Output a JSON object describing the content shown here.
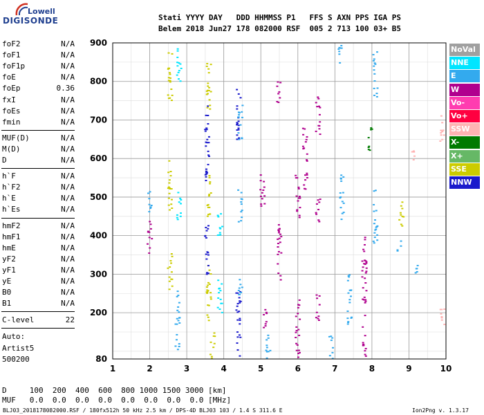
{
  "logo": {
    "top": "Lowell",
    "bottom": "DIGISONDE"
  },
  "header": {
    "line1": "Stati YYYY DAY   DDD HHMMSS P1   FFS S AXN PPS IGA PS",
    "line2": "Belem 2018 Jun27 178 082000 RSF  005 2 713 100 03+ B5"
  },
  "params_group1": [
    {
      "name": "foF2",
      "value": "N/A"
    },
    {
      "name": "foF1",
      "value": "N/A"
    },
    {
      "name": "foF1p",
      "value": "N/A"
    },
    {
      "name": "foE",
      "value": "N/A"
    },
    {
      "name": "foEp",
      "value": "0.36"
    },
    {
      "name": "fxI",
      "value": "N/A"
    },
    {
      "name": "foEs",
      "value": "N/A"
    },
    {
      "name": "fmin",
      "value": "N/A"
    }
  ],
  "params_group2": [
    {
      "name": "MUF(D)",
      "value": "N/A"
    },
    {
      "name": "M(D)",
      "value": "N/A"
    },
    {
      "name": "D",
      "value": "N/A"
    }
  ],
  "params_group3": [
    {
      "name": "h`F",
      "value": "N/A"
    },
    {
      "name": "h`F2",
      "value": "N/A"
    },
    {
      "name": "h`E",
      "value": "N/A"
    },
    {
      "name": "h`Es",
      "value": "N/A"
    }
  ],
  "params_group4": [
    {
      "name": "hmF2",
      "value": "N/A"
    },
    {
      "name": "hmF1",
      "value": "N/A"
    },
    {
      "name": "hmE",
      "value": "N/A"
    },
    {
      "name": "yF2",
      "value": "N/A"
    },
    {
      "name": "yF1",
      "value": "N/A"
    },
    {
      "name": "yE",
      "value": "N/A"
    },
    {
      "name": "B0",
      "value": "N/A"
    },
    {
      "name": "B1",
      "value": "N/A"
    }
  ],
  "clevel": {
    "name": "C-level",
    "value": "22"
  },
  "auto": {
    "line1": "Auto:",
    "line2": "Artist5",
    "line3": "500200"
  },
  "d_row": "D     100  200  400  600  800 1000 1500 3000 [km]",
  "muf_row": "MUF   0.0  0.0  0.0  0.0  0.0  0.0  0.0  0.0 [MHz]",
  "footer_left": "BLJ03_2018178082000.RSF / 180fx512h 50 kHz 2.5 km / DPS-4D BLJ03 103 / 1.4 S 311.6 E",
  "footer_right": "Ion2Png v. 1.3.17",
  "legend": [
    {
      "label": "NoVal",
      "color": "#a0a0a0"
    },
    {
      "label": "NNE",
      "color": "#00e5ff"
    },
    {
      "label": "E",
      "color": "#33aaee"
    },
    {
      "label": "W",
      "color": "#b0008e"
    },
    {
      "label": "Vo-",
      "color": "#ff3db0"
    },
    {
      "label": "Vo+",
      "color": "#ff0040"
    },
    {
      "label": "SSW",
      "color": "#ffb3b3"
    },
    {
      "label": "X-",
      "color": "#007a00"
    },
    {
      "label": "X+",
      "color": "#66b866"
    },
    {
      "label": "SSE",
      "color": "#cccc00"
    },
    {
      "label": "NNW",
      "color": "#1a1acc"
    }
  ],
  "chart_data": {
    "type": "scatter",
    "xlim": [
      1,
      10
    ],
    "ylim": [
      80,
      900
    ],
    "x_ticks": [
      "1",
      "2",
      "3",
      "4",
      "5",
      "6",
      "7",
      "8",
      "9",
      "10"
    ],
    "y_ticks": [
      {
        "v": 80,
        "l": "80"
      },
      {
        "v": 200,
        "l": "200"
      },
      {
        "v": 300,
        "l": "300"
      },
      {
        "v": 400,
        "l": "400"
      },
      {
        "v": 500,
        "l": "500"
      },
      {
        "v": 600,
        "l": "600"
      },
      {
        "v": 700,
        "l": "700"
      },
      {
        "v": 800,
        "l": "800"
      },
      {
        "v": 900,
        "l": "900"
      }
    ],
    "grid": true,
    "clusters": [
      {
        "x": 2.55,
        "y0": 740,
        "y1": 880,
        "color": "#cccc00"
      },
      {
        "x": 2.55,
        "y0": 460,
        "y1": 600,
        "color": "#cccc00"
      },
      {
        "x": 2.55,
        "y0": 260,
        "y1": 360,
        "color": "#cccc00"
      },
      {
        "x": 2.8,
        "y0": 440,
        "y1": 520,
        "color": "#00e5ff"
      },
      {
        "x": 2.8,
        "y0": 800,
        "y1": 900,
        "color": "#00e5ff"
      },
      {
        "x": 2.75,
        "y0": 100,
        "y1": 260,
        "color": "#33aaee"
      },
      {
        "x": 2.0,
        "y0": 350,
        "y1": 440,
        "color": "#b0008e"
      },
      {
        "x": 2.0,
        "y0": 460,
        "y1": 520,
        "color": "#33aaee"
      },
      {
        "x": 3.6,
        "y0": 720,
        "y1": 860,
        "color": "#cccc00"
      },
      {
        "x": 3.6,
        "y0": 440,
        "y1": 560,
        "color": "#cccc00"
      },
      {
        "x": 3.6,
        "y0": 180,
        "y1": 340,
        "color": "#cccc00"
      },
      {
        "x": 3.7,
        "y0": 80,
        "y1": 150,
        "color": "#cccc00"
      },
      {
        "x": 3.55,
        "y0": 540,
        "y1": 760,
        "color": "#1a1acc"
      },
      {
        "x": 3.55,
        "y0": 300,
        "y1": 430,
        "color": "#1a1acc"
      },
      {
        "x": 3.9,
        "y0": 200,
        "y1": 300,
        "color": "#00e5ff"
      },
      {
        "x": 3.9,
        "y0": 400,
        "y1": 480,
        "color": "#00e5ff"
      },
      {
        "x": 4.4,
        "y0": 80,
        "y1": 260,
        "color": "#1a1acc"
      },
      {
        "x": 4.4,
        "y0": 640,
        "y1": 780,
        "color": "#1a1acc"
      },
      {
        "x": 4.45,
        "y0": 430,
        "y1": 520,
        "color": "#33aaee"
      },
      {
        "x": 4.45,
        "y0": 640,
        "y1": 740,
        "color": "#33aaee"
      },
      {
        "x": 4.45,
        "y0": 240,
        "y1": 300,
        "color": "#33aaee"
      },
      {
        "x": 5.05,
        "y0": 460,
        "y1": 560,
        "color": "#b0008e"
      },
      {
        "x": 5.1,
        "y0": 160,
        "y1": 220,
        "color": "#b0008e"
      },
      {
        "x": 5.5,
        "y0": 280,
        "y1": 440,
        "color": "#b0008e"
      },
      {
        "x": 5.5,
        "y0": 740,
        "y1": 800,
        "color": "#b0008e"
      },
      {
        "x": 5.2,
        "y0": 80,
        "y1": 160,
        "color": "#33aaee"
      },
      {
        "x": 6.0,
        "y0": 440,
        "y1": 560,
        "color": "#b0008e"
      },
      {
        "x": 6.0,
        "y0": 80,
        "y1": 240,
        "color": "#b0008e"
      },
      {
        "x": 6.2,
        "y0": 520,
        "y1": 680,
        "color": "#b0008e"
      },
      {
        "x": 6.55,
        "y0": 660,
        "y1": 760,
        "color": "#b0008e"
      },
      {
        "x": 6.55,
        "y0": 430,
        "y1": 500,
        "color": "#b0008e"
      },
      {
        "x": 6.55,
        "y0": 180,
        "y1": 250,
        "color": "#b0008e"
      },
      {
        "x": 6.9,
        "y0": 80,
        "y1": 140,
        "color": "#33aaee"
      },
      {
        "x": 7.15,
        "y0": 840,
        "y1": 900,
        "color": "#33aaee"
      },
      {
        "x": 7.2,
        "y0": 440,
        "y1": 560,
        "color": "#33aaee"
      },
      {
        "x": 7.4,
        "y0": 160,
        "y1": 300,
        "color": "#33aaee"
      },
      {
        "x": 7.8,
        "y0": 80,
        "y1": 400,
        "color": "#b0008e"
      },
      {
        "x": 8.1,
        "y0": 380,
        "y1": 520,
        "color": "#33aaee"
      },
      {
        "x": 7.95,
        "y0": 620,
        "y1": 680,
        "color": "#007a00"
      },
      {
        "x": 8.1,
        "y0": 760,
        "y1": 880,
        "color": "#33aaee"
      },
      {
        "x": 8.8,
        "y0": 420,
        "y1": 500,
        "color": "#cccc00"
      },
      {
        "x": 8.75,
        "y0": 360,
        "y1": 390,
        "color": "#33aaee"
      },
      {
        "x": 9.15,
        "y0": 580,
        "y1": 620,
        "color": "#ffb3b3"
      },
      {
        "x": 9.9,
        "y0": 640,
        "y1": 720,
        "color": "#ffb3b3"
      },
      {
        "x": 9.9,
        "y0": 160,
        "y1": 220,
        "color": "#ffb3b3"
      },
      {
        "x": 9.2,
        "y0": 300,
        "y1": 340,
        "color": "#33aaee"
      }
    ]
  }
}
